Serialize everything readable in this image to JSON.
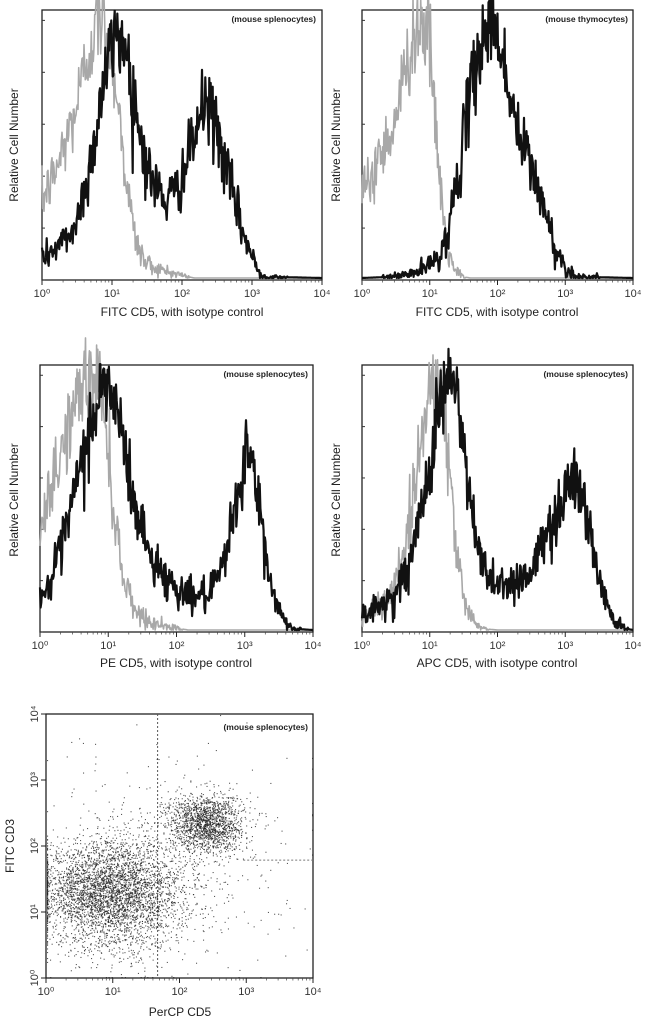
{
  "colors": {
    "isotype": "#a8a8a8",
    "stained": "#111111",
    "scatter_points": "#222222"
  },
  "chart_data": [
    {
      "type": "line",
      "annotation": "(mouse splenocytes)",
      "xlabel": "FITC  CD5,  with isotype control",
      "ylabel": "Relative Cell Number",
      "xscale": "log",
      "xlim": [
        1,
        10000
      ],
      "x_ticks": [
        "10⁰",
        "10¹",
        "10²",
        "10³",
        "10⁴"
      ],
      "ylim": [
        0,
        100
      ],
      "series": [
        {
          "role": "isotype",
          "points": [
            [
              1,
              30
            ],
            [
              1.5,
              40
            ],
            [
              2,
              50
            ],
            [
              3,
              65
            ],
            [
              4,
              80
            ],
            [
              5,
              92
            ],
            [
              6,
              98
            ],
            [
              7,
              100
            ],
            [
              8,
              97
            ],
            [
              10,
              88
            ],
            [
              12,
              70
            ],
            [
              15,
              45
            ],
            [
              18,
              28
            ],
            [
              22,
              14
            ],
            [
              30,
              6
            ],
            [
              50,
              3
            ],
            [
              100,
              1
            ],
            [
              150,
              0
            ]
          ]
        },
        {
          "role": "stained",
          "points": [
            [
              1,
              8
            ],
            [
              1.5,
              11
            ],
            [
              2,
              14
            ],
            [
              3,
              20
            ],
            [
              5,
              45
            ],
            [
              7,
              70
            ],
            [
              9,
              85
            ],
            [
              12,
              95
            ],
            [
              15,
              92
            ],
            [
              20,
              72
            ],
            [
              30,
              45
            ],
            [
              40,
              36
            ],
            [
              60,
              30
            ],
            [
              80,
              33
            ],
            [
              120,
              45
            ],
            [
              170,
              60
            ],
            [
              220,
              68
            ],
            [
              300,
              60
            ],
            [
              500,
              35
            ],
            [
              800,
              15
            ],
            [
              1200,
              3
            ],
            [
              1500,
              0.5
            ],
            [
              10000,
              0
            ]
          ]
        }
      ]
    },
    {
      "type": "line",
      "annotation": "(mouse thymocytes)",
      "xlabel": "FITC  CD5,  with isotype control",
      "ylabel": "Relative Cell Number",
      "xscale": "log",
      "xlim": [
        1,
        10000
      ],
      "x_ticks": [
        "10⁰",
        "10¹",
        "10²",
        "10³",
        "10⁴"
      ],
      "ylim": [
        0,
        100
      ],
      "series": [
        {
          "role": "isotype",
          "points": [
            [
              1,
              30
            ],
            [
              1.5,
              42
            ],
            [
              2,
              50
            ],
            [
              3,
              60
            ],
            [
              4,
              75
            ],
            [
              5,
              88
            ],
            [
              6,
              96
            ],
            [
              8,
              100
            ],
            [
              10,
              90
            ],
            [
              12,
              60
            ],
            [
              15,
              30
            ],
            [
              18,
              12
            ],
            [
              22,
              4
            ],
            [
              30,
              0.5
            ],
            [
              40,
              0
            ]
          ]
        },
        {
          "role": "stained",
          "points": [
            [
              1,
              0
            ],
            [
              3,
              0.5
            ],
            [
              6,
              2
            ],
            [
              10,
              5
            ],
            [
              15,
              10
            ],
            [
              20,
              22
            ],
            [
              30,
              50
            ],
            [
              45,
              80
            ],
            [
              65,
              96
            ],
            [
              85,
              100
            ],
            [
              110,
              92
            ],
            [
              150,
              70
            ],
            [
              220,
              52
            ],
            [
              300,
              45
            ],
            [
              450,
              30
            ],
            [
              700,
              12
            ],
            [
              1000,
              4
            ],
            [
              1500,
              0.5
            ],
            [
              10000,
              0
            ]
          ]
        }
      ]
    },
    {
      "type": "line",
      "annotation": "(mouse splenocytes)",
      "xlabel": "PE  CD5,  with isotype control",
      "ylabel": "Relative Cell Number",
      "xscale": "log",
      "xlim": [
        1,
        10000
      ],
      "x_ticks": [
        "10⁰",
        "10¹",
        "10²",
        "10³",
        "10⁴"
      ],
      "ylim": [
        0,
        100
      ],
      "series": [
        {
          "role": "isotype",
          "points": [
            [
              1,
              35
            ],
            [
              1.5,
              55
            ],
            [
              2,
              70
            ],
            [
              3,
              85
            ],
            [
              4,
              95
            ],
            [
              6,
              100
            ],
            [
              8,
              95
            ],
            [
              10,
              70
            ],
            [
              13,
              40
            ],
            [
              17,
              20
            ],
            [
              25,
              8
            ],
            [
              40,
              3
            ],
            [
              80,
              1
            ],
            [
              150,
              0
            ]
          ]
        },
        {
          "role": "stained",
          "points": [
            [
              1,
              12
            ],
            [
              1.5,
              20
            ],
            [
              2,
              30
            ],
            [
              3,
              50
            ],
            [
              5,
              75
            ],
            [
              7,
              90
            ],
            [
              9,
              96
            ],
            [
              12,
              92
            ],
            [
              16,
              75
            ],
            [
              25,
              48
            ],
            [
              40,
              30
            ],
            [
              70,
              20
            ],
            [
              120,
              15
            ],
            [
              200,
              13
            ],
            [
              350,
              15
            ],
            [
              550,
              30
            ],
            [
              800,
              55
            ],
            [
              1100,
              72
            ],
            [
              1500,
              55
            ],
            [
              2200,
              22
            ],
            [
              3500,
              5
            ],
            [
              5000,
              0.5
            ],
            [
              10000,
              0
            ]
          ]
        }
      ]
    },
    {
      "type": "line",
      "annotation": "(mouse splenocytes)",
      "xlabel": "APC CD5, with isotype control",
      "ylabel": "Relative Cell Number",
      "xscale": "log",
      "xlim": [
        1,
        10000
      ],
      "x_ticks": [
        "10⁰",
        "10¹",
        "10²",
        "10³",
        "10⁴"
      ],
      "ylim": [
        0,
        100
      ],
      "series": [
        {
          "role": "isotype",
          "points": [
            [
              1,
              5
            ],
            [
              2,
              10
            ],
            [
              3,
              18
            ],
            [
              5,
              40
            ],
            [
              7,
              70
            ],
            [
              9,
              90
            ],
            [
              11,
              98
            ],
            [
              13,
              100
            ],
            [
              16,
              88
            ],
            [
              20,
              60
            ],
            [
              25,
              30
            ],
            [
              32,
              12
            ],
            [
              45,
              4
            ],
            [
              60,
              0.5
            ],
            [
              100,
              0
            ]
          ]
        },
        {
          "role": "stained",
          "points": [
            [
              1,
              5
            ],
            [
              1.5,
              8
            ],
            [
              2,
              10
            ],
            [
              3,
              14
            ],
            [
              5,
              25
            ],
            [
              8,
              50
            ],
            [
              12,
              80
            ],
            [
              16,
              95
            ],
            [
              20,
              100
            ],
            [
              26,
              90
            ],
            [
              35,
              60
            ],
            [
              50,
              32
            ],
            [
              80,
              20
            ],
            [
              150,
              18
            ],
            [
              300,
              22
            ],
            [
              600,
              40
            ],
            [
              1000,
              55
            ],
            [
              1400,
              60
            ],
            [
              2000,
              48
            ],
            [
              3000,
              22
            ],
            [
              5000,
              5
            ],
            [
              8000,
              0.5
            ],
            [
              10000,
              0
            ]
          ]
        }
      ]
    },
    {
      "type": "scatter",
      "annotation": "(mouse splenocytes)",
      "xlabel": "PerCP CD5",
      "ylabel": "FITC CD3",
      "xscale": "log",
      "yscale": "log",
      "xlim": [
        1,
        10000
      ],
      "ylim": [
        1,
        10000
      ],
      "x_ticks": [
        "10⁰",
        "10¹",
        "10²",
        "10³",
        "10⁴"
      ],
      "y_ticks": [
        "10⁰",
        "10¹",
        "10²",
        "10³",
        "10⁴"
      ],
      "quadrant_gates": {
        "x": 47,
        "y": 61,
        "y_gate_starts_at_x": 900
      },
      "populations": [
        {
          "center": [
            12,
            19
          ],
          "log_spread": [
            0.5,
            0.42
          ],
          "events": 3200
        },
        {
          "center": [
            3,
            22
          ],
          "log_spread": [
            0.35,
            0.35
          ],
          "events": 700
        },
        {
          "center": [
            250,
            220
          ],
          "log_spread": [
            0.28,
            0.22
          ],
          "events": 1600
        },
        {
          "center": [
            60,
            60
          ],
          "log_spread": [
            0.9,
            0.8
          ],
          "events": 500
        }
      ]
    }
  ]
}
